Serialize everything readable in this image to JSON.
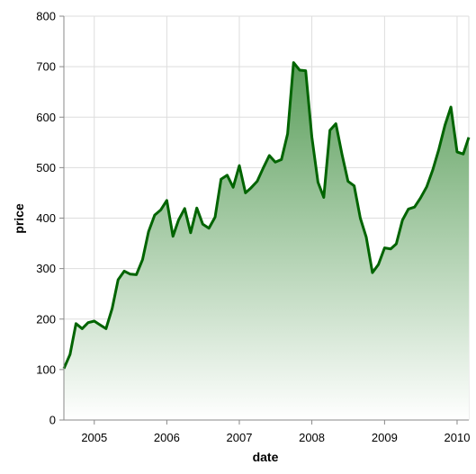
{
  "chart_data": {
    "type": "area",
    "title": "",
    "xlabel": "date",
    "ylabel": "price",
    "xlim": [
      "2004-08-01",
      "2010-03-01"
    ],
    "ylim": [
      0,
      800
    ],
    "x_ticks": [
      "2005",
      "2006",
      "2007",
      "2008",
      "2009",
      "2010"
    ],
    "y_ticks": [
      "0",
      "100",
      "200",
      "300",
      "400",
      "500",
      "600",
      "700",
      "800"
    ],
    "grid": true,
    "line_color": "#006400",
    "fill_gradient": [
      "#5a9e5a",
      "#ffffff"
    ],
    "series": [
      {
        "x": [
          "2004-08",
          "2004-09",
          "2004-10",
          "2004-11",
          "2004-12",
          "2005-01",
          "2005-02",
          "2005-03",
          "2005-04",
          "2005-05",
          "2005-06",
          "2005-07",
          "2005-08",
          "2005-09",
          "2005-10",
          "2005-11",
          "2005-12",
          "2006-01",
          "2006-02",
          "2006-03",
          "2006-04",
          "2006-05",
          "2006-06",
          "2006-07",
          "2006-08",
          "2006-09",
          "2006-10",
          "2006-11",
          "2006-12",
          "2007-01",
          "2007-02",
          "2007-03",
          "2007-04",
          "2007-05",
          "2007-06",
          "2007-07",
          "2007-08",
          "2007-09",
          "2007-10",
          "2007-11",
          "2007-12",
          "2008-01",
          "2008-02",
          "2008-03",
          "2008-04",
          "2008-05",
          "2008-06",
          "2008-07",
          "2008-08",
          "2008-09",
          "2008-10",
          "2008-11",
          "2008-12",
          "2009-01",
          "2009-02",
          "2009-03",
          "2009-04",
          "2009-05",
          "2009-06",
          "2009-07",
          "2009-08",
          "2009-09",
          "2009-10",
          "2009-11",
          "2009-12",
          "2010-01",
          "2010-02",
          "2010-03"
        ],
        "y": [
          102,
          130,
          191,
          181,
          193,
          196,
          188,
          181,
          221,
          278,
          295,
          289,
          288,
          318,
          373,
          406,
          416,
          435,
          364,
          396,
          419,
          371,
          420,
          388,
          380,
          402,
          477,
          485,
          461,
          504,
          450,
          460,
          473,
          499,
          524,
          511,
          516,
          567,
          708,
          693,
          692,
          561,
          471,
          441,
          574,
          587,
          526,
          473,
          464,
          400,
          362,
          292,
          308,
          341,
          339,
          349,
          396,
          418,
          422,
          440,
          462,
          496,
          536,
          584,
          620,
          531,
          527,
          560
        ]
      }
    ]
  }
}
